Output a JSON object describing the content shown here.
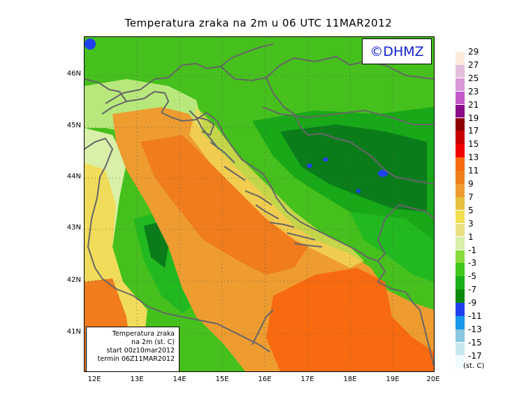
{
  "title": "Temperatura zraka na 2m u 06 UTC 11MAR2012",
  "brand": "©DHMZ",
  "info_box": {
    "line1": "Temperatura zraka",
    "line2": "na 2m (st. C)",
    "line3": "start 00z10mar2012",
    "line4": "termin 06Z11MAR2012"
  },
  "lat_labels": [
    "46N",
    "45N",
    "44N",
    "43N",
    "42N",
    "41N"
  ],
  "lon_labels": [
    "12E",
    "13E",
    "14E",
    "15E",
    "16E",
    "17E",
    "18E",
    "19E",
    "20E"
  ],
  "legend": {
    "labels": [
      "29",
      "27",
      "25",
      "23",
      "21",
      "19",
      "17",
      "15",
      "13",
      "11",
      "9",
      "7",
      "5",
      "3",
      "1",
      "-1",
      "-3",
      "-5",
      "-7",
      "-9",
      "-11",
      "-13",
      "-15",
      "-17"
    ],
    "colors": [
      "#fbeadc",
      "#e4bfdc",
      "#d898d8",
      "#c458c8",
      "#8a0c88",
      "#8f0000",
      "#c80000",
      "#f00000",
      "#f86a10",
      "#f0801c",
      "#ee9c30",
      "#e8c040",
      "#f2e050",
      "#ece084",
      "#d8f0a8",
      "#88dc3c",
      "#3ec81c",
      "#18b018",
      "#0a8a0a",
      "#2040f0",
      "#1898e8",
      "#88c8e0",
      "#c8e8f0",
      "#f0fcff"
    ],
    "unit": "(st. C)"
  },
  "colors": {
    "green_dark": "#0a7c1a",
    "green": "#22b820",
    "green_light": "#5cd23c",
    "pale_green": "#b8e87c",
    "yellow": "#f0dc5a",
    "orange": "#ee9c30",
    "orange_dark": "#f07c1e",
    "blue": "#2040f0",
    "coast": "#666666"
  }
}
